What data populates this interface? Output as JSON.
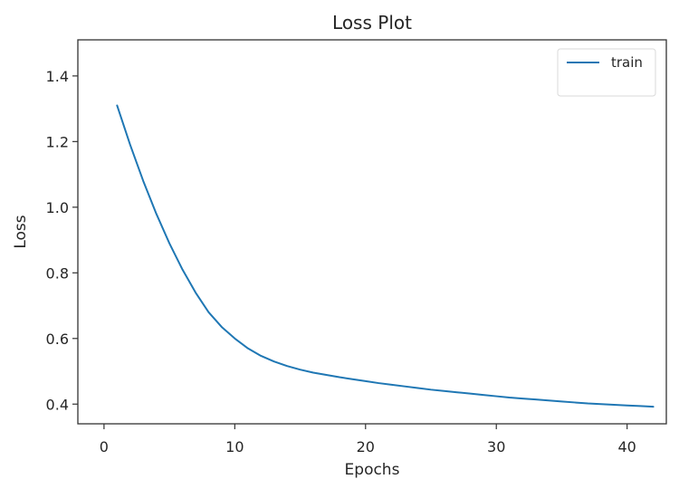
{
  "chart_data": {
    "type": "line",
    "title": "Loss Plot",
    "xlabel": "Epochs",
    "ylabel": "Loss",
    "xlim": [
      -2,
      43
    ],
    "ylim": [
      0.34,
      1.51
    ],
    "xticks": [
      0,
      10,
      20,
      30,
      40
    ],
    "yticks": [
      0.4,
      0.6,
      0.8,
      1.0,
      1.2,
      1.4
    ],
    "xtick_labels": [
      "0",
      "10",
      "20",
      "30",
      "40"
    ],
    "ytick_labels": [
      "0.4",
      "0.6",
      "0.8",
      "1.0",
      "1.2",
      "1.4"
    ],
    "grid": false,
    "legend_position": "top-right",
    "colors": {
      "train": "#1f77b4",
      "axes": "#333333",
      "text": "#262626",
      "background": "#ffffff"
    },
    "series": [
      {
        "name": "train",
        "color": "#1f77b4",
        "x": [
          1,
          2,
          3,
          4,
          5,
          6,
          7,
          8,
          9,
          10,
          11,
          12,
          13,
          14,
          15,
          16,
          17,
          18,
          19,
          20,
          21,
          22,
          23,
          24,
          25,
          26,
          27,
          28,
          29,
          30,
          31,
          32,
          33,
          34,
          35,
          36,
          37,
          38,
          39,
          40,
          41,
          42
        ],
        "y": [
          1.31,
          1.19,
          1.08,
          0.98,
          0.89,
          0.81,
          0.74,
          0.68,
          0.635,
          0.6,
          0.57,
          0.547,
          0.53,
          0.516,
          0.505,
          0.496,
          0.489,
          0.482,
          0.476,
          0.47,
          0.464,
          0.459,
          0.454,
          0.449,
          0.444,
          0.44,
          0.436,
          0.432,
          0.428,
          0.424,
          0.42,
          0.417,
          0.414,
          0.411,
          0.408,
          0.405,
          0.402,
          0.4,
          0.398,
          0.396,
          0.394,
          0.392
        ]
      }
    ]
  }
}
